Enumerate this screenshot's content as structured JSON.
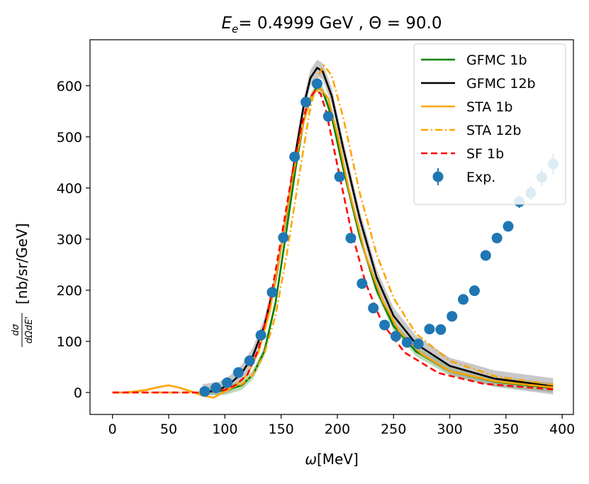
{
  "chart_data": {
    "type": "line",
    "title": {
      "E_symbol": "E",
      "E_sub": "e",
      "E_value": "= 0.4999 GeV , ",
      "theta_symbol": "Θ",
      "theta_value": " = 90.0"
    },
    "xlabel": {
      "symbol": "ω",
      "unit": "[MeV]"
    },
    "ylabel": {
      "frac_num": "dσ",
      "frac_den": "dΩdE'",
      "unit": "[nb/sr/GeV]"
    },
    "xlim": [
      -20,
      410
    ],
    "ylim": [
      -43,
      690
    ],
    "xticks": [
      0,
      50,
      100,
      150,
      200,
      250,
      300,
      350,
      400
    ],
    "yticks": [
      0,
      100,
      200,
      300,
      400,
      500,
      600
    ],
    "legend_position": "top-right",
    "series": [
      {
        "name": "GFMC 1b",
        "color": "#008000",
        "dash": "solid",
        "band": {
          "color": "#7fbf7f",
          "halfwidth": 9
        },
        "x": [
          80,
          100,
          115,
          125,
          135,
          145,
          155,
          163,
          170,
          176,
          182,
          187,
          195,
          205,
          220,
          235,
          250,
          270,
          300,
          340,
          392
        ],
        "y": [
          0,
          4,
          14,
          35,
          80,
          175,
          320,
          440,
          530,
          575,
          598,
          590,
          540,
          440,
          305,
          200,
          130,
          80,
          42,
          21,
          9
        ]
      },
      {
        "name": "GFMC 12b",
        "color": "#000000",
        "dash": "solid",
        "band": {
          "color": "#9a9a9a",
          "halfwidth": 16
        },
        "x": [
          80,
          95,
          105,
          115,
          125,
          135,
          145,
          155,
          163,
          170,
          176,
          182,
          187,
          195,
          205,
          220,
          235,
          250,
          270,
          300,
          340,
          392
        ],
        "y": [
          0,
          5,
          18,
          38,
          72,
          130,
          220,
          350,
          470,
          560,
          615,
          635,
          628,
          580,
          480,
          340,
          225,
          150,
          95,
          52,
          27,
          12
        ]
      },
      {
        "name": "STA 1b",
        "color": "#ffa500",
        "dash": "solid",
        "x": [
          0,
          10,
          20,
          30,
          40,
          50,
          60,
          70,
          80,
          90,
          100,
          110,
          120,
          130,
          140,
          150,
          160,
          170,
          178,
          185,
          192,
          200,
          210,
          225,
          240,
          255,
          275,
          300,
          340,
          392
        ],
        "y": [
          0,
          0,
          2,
          5,
          10,
          14,
          9,
          2,
          -6,
          -10,
          2,
          14,
          35,
          80,
          160,
          285,
          420,
          530,
          585,
          595,
          575,
          505,
          400,
          270,
          180,
          120,
          75,
          42,
          22,
          10
        ]
      },
      {
        "name": "STA 12b",
        "color": "#ffa500",
        "dash": "dashdot",
        "x": [
          0,
          80,
          100,
          115,
          125,
          135,
          145,
          155,
          165,
          175,
          182,
          188,
          195,
          205,
          220,
          235,
          250,
          270,
          300,
          340,
          392
        ],
        "y": [
          0,
          0,
          6,
          16,
          35,
          75,
          150,
          270,
          410,
          545,
          615,
          640,
          620,
          540,
          390,
          270,
          185,
          115,
          62,
          32,
          15
        ]
      },
      {
        "name": "SF 1b",
        "color": "#ff0000",
        "dash": "dashed",
        "x": [
          0,
          80,
          100,
          110,
          120,
          130,
          140,
          150,
          160,
          168,
          174,
          180,
          185,
          190,
          200,
          212,
          225,
          240,
          260,
          290,
          330,
          392
        ],
        "y": [
          0,
          0,
          5,
          15,
          35,
          85,
          175,
          300,
          430,
          520,
          570,
          590,
          585,
          550,
          445,
          320,
          215,
          135,
          78,
          38,
          17,
          6
        ]
      }
    ],
    "experiment": {
      "name": "Exp.",
      "color": "#1f77b4",
      "x": [
        82,
        92,
        102,
        112,
        122,
        132,
        142,
        152,
        162,
        172,
        182,
        192,
        202,
        212,
        222,
        232,
        242,
        252,
        262,
        272,
        282,
        292,
        302,
        312,
        322,
        332,
        342,
        352,
        362,
        372,
        382,
        392
      ],
      "y": [
        2,
        9,
        19,
        39,
        62,
        112,
        196,
        303,
        461,
        568,
        604,
        540,
        422,
        302,
        213,
        165,
        132,
        110,
        98,
        95,
        124,
        123,
        149,
        182,
        199,
        268,
        302,
        325,
        373,
        390,
        421,
        447
      ],
      "err": [
        2,
        2,
        3,
        4,
        5,
        6,
        7,
        8,
        9,
        9,
        9,
        9,
        8,
        7,
        6,
        6,
        5,
        5,
        5,
        5,
        5,
        5,
        6,
        6,
        7,
        8,
        9,
        10,
        12,
        14,
        17,
        20
      ]
    }
  }
}
